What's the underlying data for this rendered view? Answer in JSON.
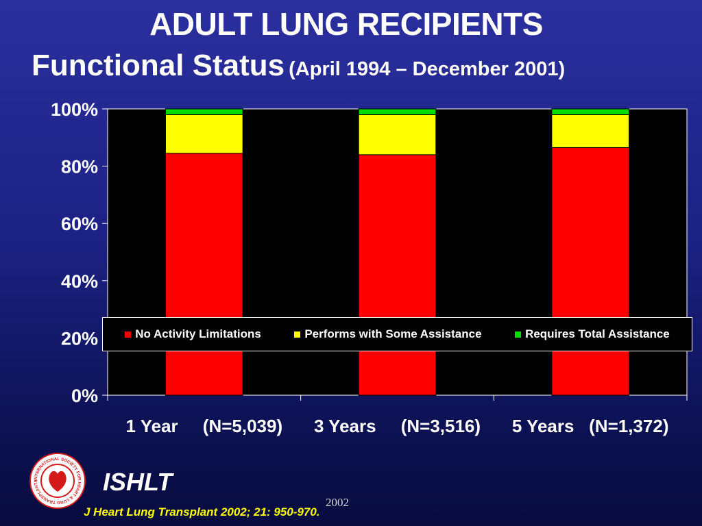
{
  "slide": {
    "title_line1": "ADULT LUNG RECIPIENTS",
    "title_line2": "Functional Status",
    "title_line2_sub": "(April 1994 – December 2001)",
    "org_label": "ISHLT",
    "year_mark": "2002",
    "citation": "J Heart Lung Transplant 2002; 21: 950-970."
  },
  "logo": {
    "ring_color": "#ffffff",
    "emblem_color": "#d41a1a",
    "text": "INTERNATIONAL SOCIETY FOR HEART & LUNG TRANSPLANTATION",
    "icon": "ishlt-logo-icon"
  },
  "colors": {
    "plot_background": "#000000",
    "axis": "#ffffff",
    "text": "#ffffff",
    "citation": "#ffff00"
  },
  "chart_data": {
    "type": "bar",
    "stacked": true,
    "percent_scale": true,
    "categories": [
      "1 Year     (N=5,039)",
      "3 Years     (N=3,516)",
      "5 Years   (N=1,372)"
    ],
    "series": [
      {
        "name": "No Activity Limitations",
        "color": "#ff0000",
        "values": [
          84.5,
          84,
          86.5
        ]
      },
      {
        "name": "Performs with Some Assistance",
        "color": "#ffff00",
        "values": [
          13.5,
          14,
          11.5
        ]
      },
      {
        "name": "Requires Total Assistance",
        "color": "#00dd00",
        "values": [
          2,
          2,
          2
        ]
      }
    ],
    "y_ticks": [
      "0%",
      "20%",
      "40%",
      "60%",
      "80%",
      "100%"
    ],
    "ylim": [
      0,
      100
    ],
    "grid": false,
    "legend_position": "inside-bottom"
  }
}
